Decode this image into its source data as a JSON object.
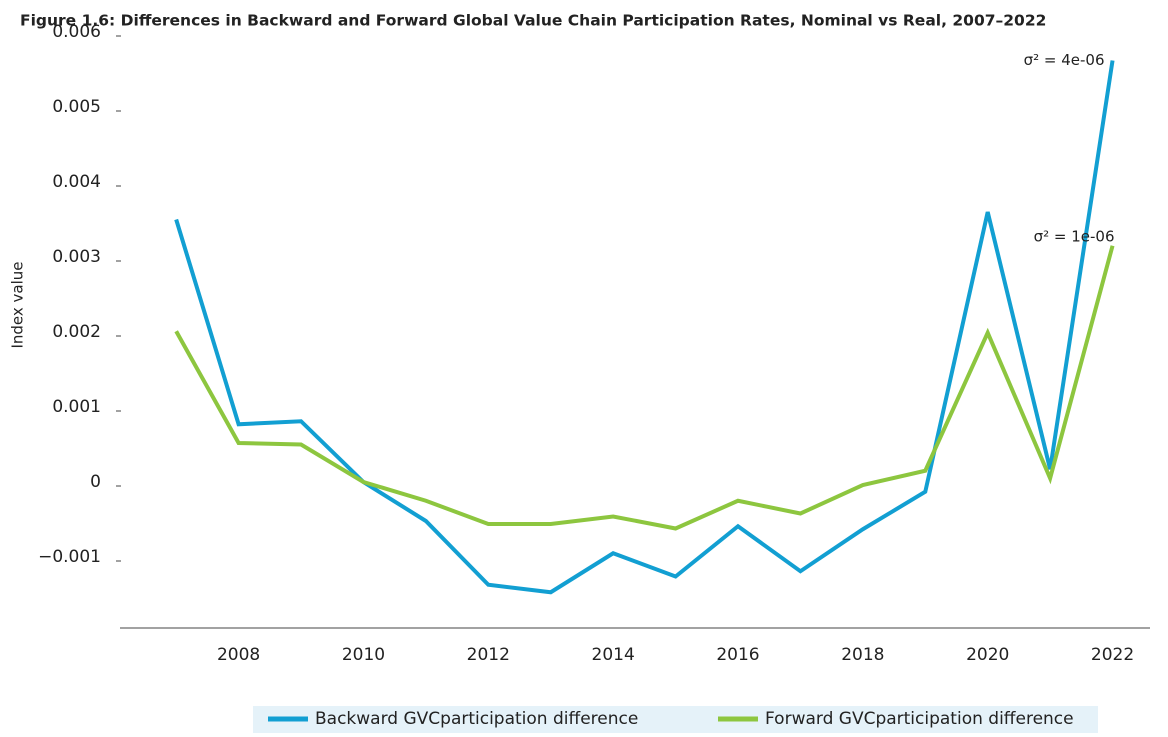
{
  "chart_data": {
    "type": "line",
    "title": "Figure 1.6: Differences in Backward and Forward Global Value Chain Participation Rates, Nominal vs Real, 2007–2022",
    "y_label": "Index value",
    "x": [
      2007,
      2008,
      2009,
      2010,
      2011,
      2012,
      2013,
      2014,
      2015,
      2016,
      2017,
      2018,
      2019,
      2020,
      2021,
      2022
    ],
    "series": [
      {
        "name": "Backward GVCparticipation difference",
        "color": "#129fd2",
        "values": [
          0.0035,
          0.00077,
          0.00081,
          0.0,
          -0.00052,
          -0.00137,
          -0.00147,
          -0.00095,
          -0.00126,
          -0.00059,
          -0.00119,
          -0.00063,
          -0.00013,
          0.0036,
          0.00017,
          0.00562
        ]
      },
      {
        "name": "Forward GVCparticipation difference",
        "color": "#8dc63f",
        "values": [
          0.00201,
          0.00052,
          0.0005,
          0.0,
          -0.00025,
          -0.00056,
          -0.00056,
          -0.00046,
          -0.00062,
          -0.00025,
          -0.00042,
          -4e-05,
          0.00015,
          0.00199,
          5e-05,
          0.00315
        ]
      }
    ],
    "annotations": [
      "σ² = 4e-06",
      "σ² = 1e-06"
    ],
    "xlim": [
      2006.1,
      2022.6
    ],
    "xticks": [
      2008,
      2010,
      2012,
      2014,
      2016,
      2018,
      2020,
      2022
    ],
    "ylim": [
      -0.002,
      0.006
    ],
    "yticks": [
      {
        "value": -0.001,
        "label": "−0.001"
      },
      0,
      0.001,
      0.002,
      0.003,
      0.004,
      0.005,
      0.006
    ],
    "grid": false,
    "legend": "bottom"
  }
}
